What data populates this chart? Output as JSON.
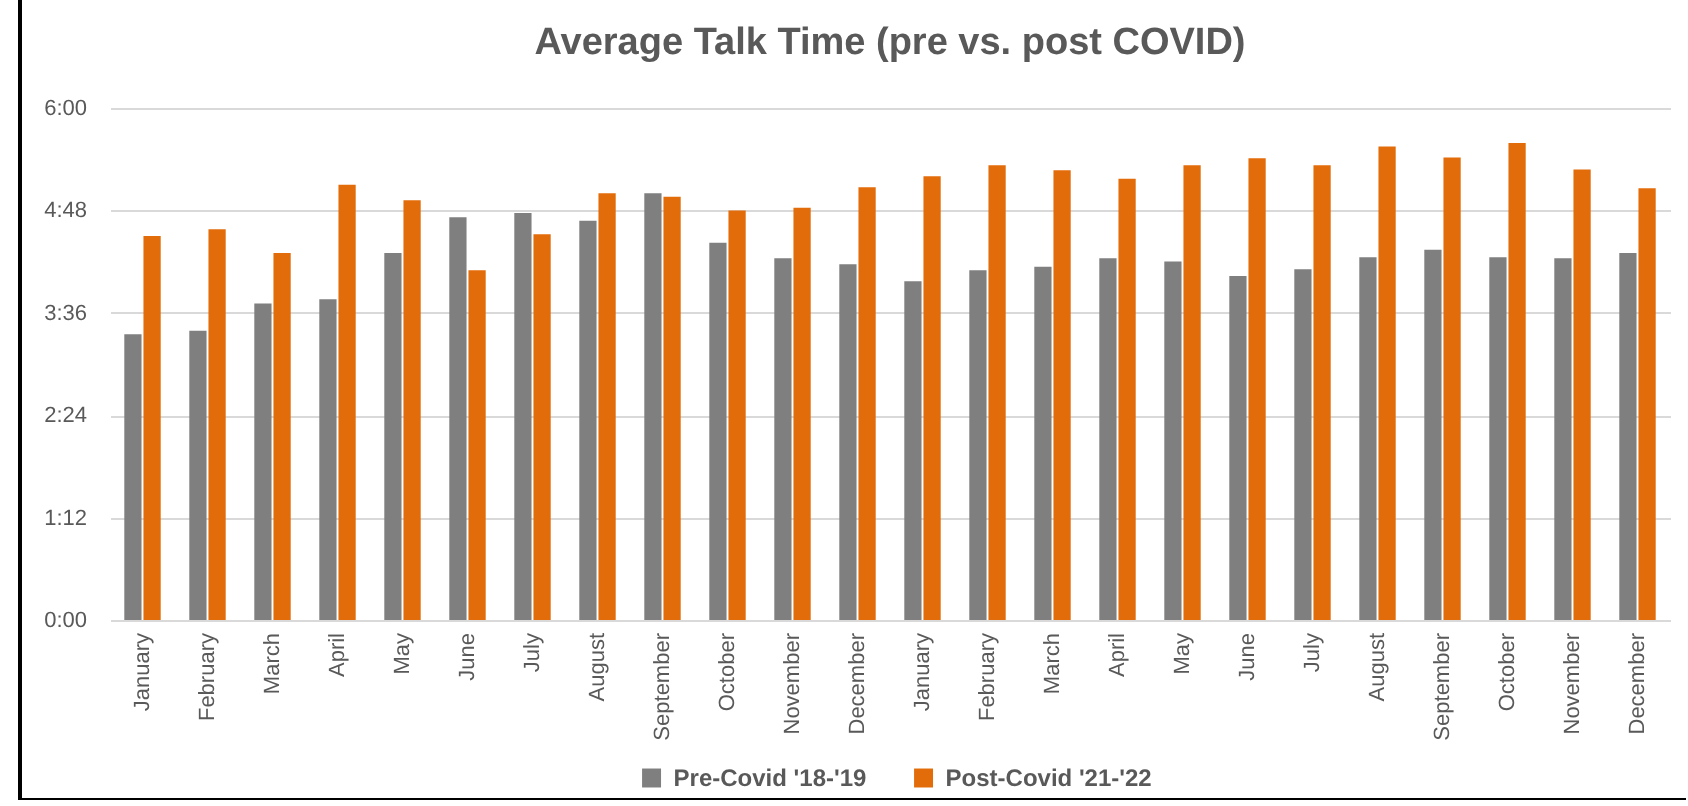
{
  "chart_data": {
    "type": "bar",
    "title": "Average Talk Time (pre vs. post COVID)",
    "categories": [
      "January",
      "February",
      "March",
      "April",
      "May",
      "June",
      "July",
      "August",
      "September",
      "October",
      "November",
      "December",
      "January",
      "February",
      "March",
      "April",
      "May",
      "June",
      "July",
      "August",
      "September",
      "October",
      "November",
      "December"
    ],
    "series": [
      {
        "name": "Pre-Covid '18-'19",
        "color": "#7f7f7f",
        "values": [
          3.35,
          3.39,
          3.71,
          3.76,
          4.3,
          4.72,
          4.77,
          4.68,
          5.0,
          4.42,
          4.24,
          4.17,
          3.97,
          4.1,
          4.14,
          4.24,
          4.2,
          4.03,
          4.11,
          4.25,
          4.34,
          4.25,
          4.24,
          4.3
        ]
      },
      {
        "name": "Post-Covid '21-'22",
        "color": "#e36c0a",
        "values": [
          4.5,
          4.58,
          4.3,
          5.1,
          4.92,
          4.1,
          4.52,
          5.0,
          4.96,
          4.8,
          4.83,
          5.07,
          5.2,
          5.33,
          5.27,
          5.17,
          5.33,
          5.41,
          5.33,
          5.55,
          5.42,
          5.59,
          5.28,
          5.06
        ]
      }
    ],
    "ylim": [
      0,
      6
    ],
    "yticks": [
      {
        "value": 0,
        "label": "0:00"
      },
      {
        "value": 1.2,
        "label": "1:12"
      },
      {
        "value": 2.4,
        "label": "2:24"
      },
      {
        "value": 3.6,
        "label": "3:36"
      },
      {
        "value": 4.8,
        "label": "4:48"
      },
      {
        "value": 6,
        "label": "6:00"
      }
    ],
    "grid": "y",
    "legend": "bottom"
  }
}
